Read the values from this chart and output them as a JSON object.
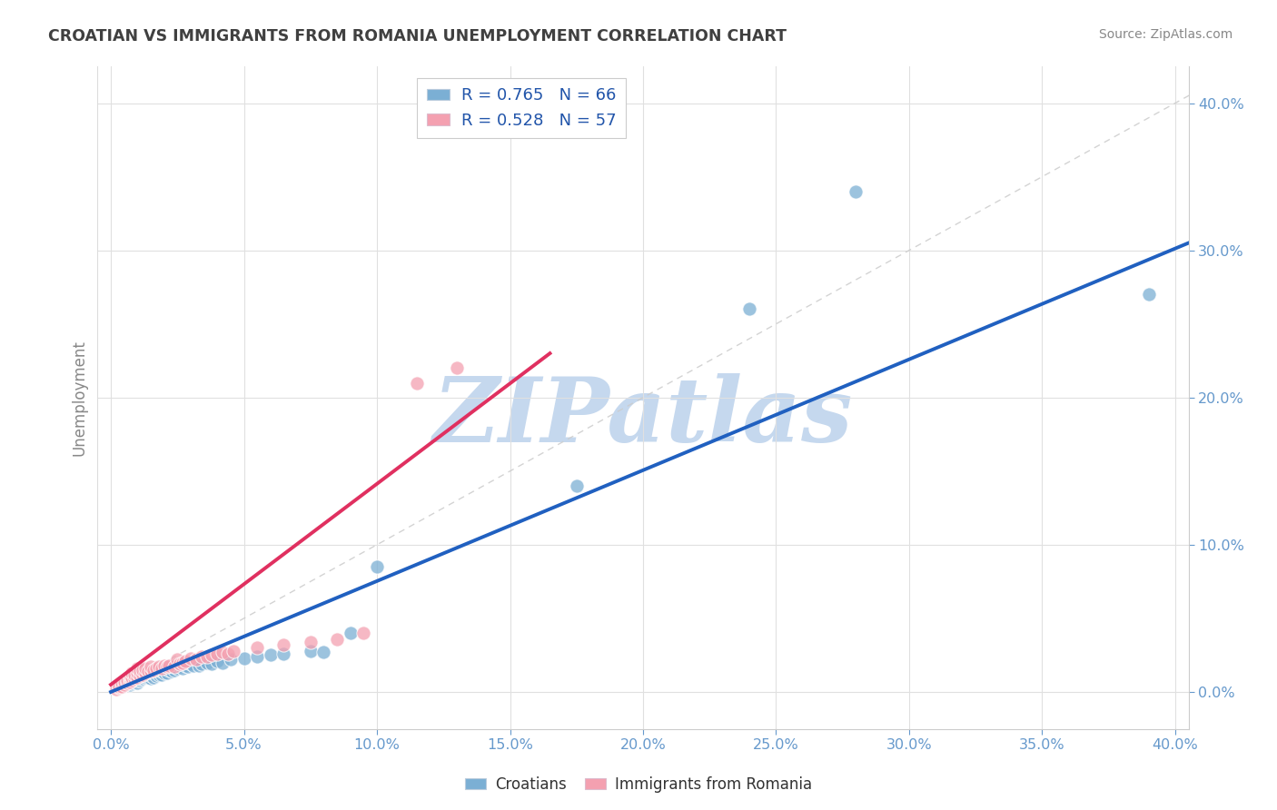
{
  "title": "CROATIAN VS IMMIGRANTS FROM ROMANIA UNEMPLOYMENT CORRELATION CHART",
  "source": "Source: ZipAtlas.com",
  "ylabel": "Unemployment",
  "xlim": [
    -0.005,
    0.405
  ],
  "ylim": [
    -0.025,
    0.425
  ],
  "xtick_vals": [
    0.0,
    0.05,
    0.1,
    0.15,
    0.2,
    0.25,
    0.3,
    0.35,
    0.4
  ],
  "ytick_vals": [
    0.0,
    0.1,
    0.2,
    0.3,
    0.4
  ],
  "blue_R": "0.765",
  "blue_N": "66",
  "pink_R": "0.528",
  "pink_N": "57",
  "blue_dot_color": "#7BAFD4",
  "pink_dot_color": "#F4A0B0",
  "blue_line_color": "#2060C0",
  "pink_line_color": "#E03060",
  "diag_color": "#CCCCCC",
  "watermark_color": "#C5D8EE",
  "bg_color": "#FFFFFF",
  "grid_color": "#E0E0E0",
  "tick_color": "#6699CC",
  "title_color": "#404040",
  "source_color": "#888888",
  "ylabel_color": "#888888",
  "legend_text_color": "#2255AA",
  "legend_label_blue": "Croatians",
  "legend_label_pink": "Immigrants from Romania",
  "blue_line_x0": 0.0,
  "blue_line_x1": 0.405,
  "blue_line_y0": 0.0,
  "blue_line_y1": 0.305,
  "pink_line_x0": 0.0,
  "pink_line_x1": 0.165,
  "pink_line_y0": 0.005,
  "pink_line_y1": 0.23,
  "blue_x": [
    0.003,
    0.004,
    0.005,
    0.005,
    0.007,
    0.007,
    0.008,
    0.008,
    0.009,
    0.009,
    0.01,
    0.01,
    0.01,
    0.011,
    0.011,
    0.011,
    0.012,
    0.012,
    0.013,
    0.013,
    0.014,
    0.014,
    0.015,
    0.015,
    0.015,
    0.016,
    0.016,
    0.017,
    0.017,
    0.018,
    0.018,
    0.019,
    0.019,
    0.02,
    0.02,
    0.021,
    0.022,
    0.023,
    0.023,
    0.024,
    0.025,
    0.026,
    0.027,
    0.028,
    0.029,
    0.03,
    0.031,
    0.033,
    0.034,
    0.036,
    0.038,
    0.04,
    0.042,
    0.045,
    0.05,
    0.055,
    0.06,
    0.065,
    0.075,
    0.08,
    0.09,
    0.1,
    0.175,
    0.24,
    0.28,
    0.39
  ],
  "blue_y": [
    0.003,
    0.004,
    0.005,
    0.006,
    0.005,
    0.007,
    0.006,
    0.008,
    0.007,
    0.009,
    0.006,
    0.008,
    0.01,
    0.008,
    0.009,
    0.011,
    0.009,
    0.011,
    0.01,
    0.012,
    0.01,
    0.013,
    0.009,
    0.011,
    0.013,
    0.01,
    0.013,
    0.011,
    0.014,
    0.012,
    0.015,
    0.012,
    0.014,
    0.013,
    0.016,
    0.013,
    0.015,
    0.014,
    0.017,
    0.015,
    0.016,
    0.017,
    0.016,
    0.018,
    0.017,
    0.019,
    0.018,
    0.018,
    0.019,
    0.02,
    0.019,
    0.021,
    0.02,
    0.022,
    0.023,
    0.024,
    0.025,
    0.026,
    0.028,
    0.027,
    0.04,
    0.085,
    0.14,
    0.26,
    0.34,
    0.27
  ],
  "pink_x": [
    0.002,
    0.003,
    0.003,
    0.004,
    0.004,
    0.005,
    0.005,
    0.006,
    0.006,
    0.007,
    0.007,
    0.007,
    0.008,
    0.008,
    0.008,
    0.009,
    0.009,
    0.01,
    0.01,
    0.01,
    0.011,
    0.011,
    0.012,
    0.012,
    0.013,
    0.013,
    0.014,
    0.015,
    0.015,
    0.016,
    0.017,
    0.018,
    0.019,
    0.02,
    0.021,
    0.022,
    0.024,
    0.025,
    0.026,
    0.027,
    0.028,
    0.03,
    0.032,
    0.034,
    0.036,
    0.038,
    0.04,
    0.042,
    0.044,
    0.046,
    0.055,
    0.065,
    0.075,
    0.085,
    0.095,
    0.115,
    0.13
  ],
  "pink_y": [
    0.002,
    0.003,
    0.004,
    0.004,
    0.006,
    0.005,
    0.007,
    0.006,
    0.008,
    0.007,
    0.009,
    0.011,
    0.008,
    0.01,
    0.013,
    0.009,
    0.012,
    0.01,
    0.013,
    0.016,
    0.011,
    0.014,
    0.012,
    0.015,
    0.013,
    0.016,
    0.014,
    0.014,
    0.017,
    0.015,
    0.016,
    0.017,
    0.016,
    0.018,
    0.017,
    0.018,
    0.017,
    0.022,
    0.019,
    0.02,
    0.021,
    0.023,
    0.022,
    0.024,
    0.024,
    0.025,
    0.026,
    0.027,
    0.026,
    0.028,
    0.03,
    0.032,
    0.034,
    0.036,
    0.04,
    0.21,
    0.22
  ]
}
